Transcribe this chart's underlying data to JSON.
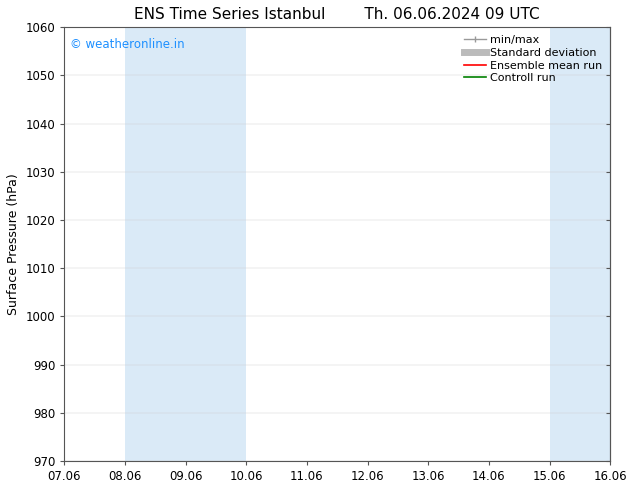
{
  "title_left": "ENS Time Series Istanbul",
  "title_right": "Th. 06.06.2024 09 UTC",
  "ylabel": "Surface Pressure (hPa)",
  "ylim": [
    970,
    1060
  ],
  "yticks": [
    970,
    980,
    990,
    1000,
    1010,
    1020,
    1030,
    1040,
    1050,
    1060
  ],
  "x_labels": [
    "07.06",
    "08.06",
    "09.06",
    "10.06",
    "11.06",
    "12.06",
    "13.06",
    "14.06",
    "15.06",
    "16.06"
  ],
  "x_positions": [
    0,
    1,
    2,
    3,
    4,
    5,
    6,
    7,
    8,
    9
  ],
  "xlim": [
    0,
    9
  ],
  "shaded_bands": [
    {
      "x_start": 1,
      "x_end": 3,
      "color": "#daeaf7"
    },
    {
      "x_start": 8,
      "x_end": 9,
      "color": "#daeaf7"
    }
  ],
  "watermark_text": "© weatheronline.in",
  "watermark_color": "#1e90ff",
  "background_color": "#ffffff",
  "plot_bg_color": "#ffffff",
  "spine_color": "#555555",
  "legend_labels": [
    "min/max",
    "Standard deviation",
    "Ensemble mean run",
    "Controll run"
  ],
  "legend_colors": [
    "#999999",
    "#bbbbbb",
    "#ff0000",
    "#008000"
  ],
  "legend_lw": [
    1.0,
    5.0,
    1.2,
    1.2
  ],
  "title_fontsize": 11,
  "tick_fontsize": 8.5,
  "ylabel_fontsize": 9,
  "legend_fontsize": 8,
  "watermark_fontsize": 8.5
}
